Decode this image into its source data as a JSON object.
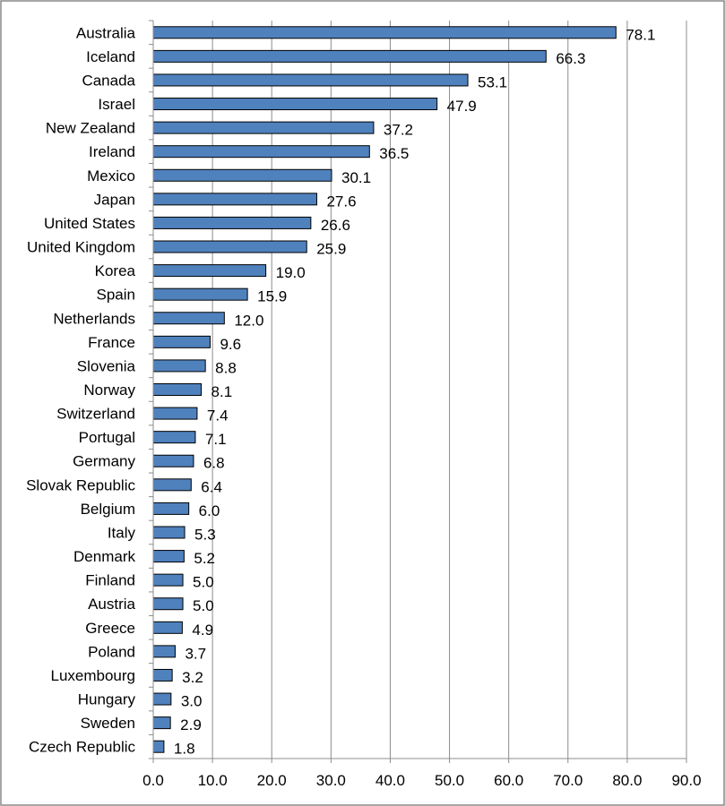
{
  "chart_data": {
    "type": "bar",
    "orientation": "horizontal",
    "title": "",
    "xlabel": "",
    "ylabel": "",
    "xlim": [
      0,
      90
    ],
    "x_ticks": [
      "0.0",
      "10.0",
      "20.0",
      "30.0",
      "40.0",
      "50.0",
      "60.0",
      "70.0",
      "80.0",
      "90.0"
    ],
    "grid": true,
    "legend": "none",
    "bar_color": "#4f81bd",
    "categories": [
      "Australia",
      "Iceland",
      "Canada",
      "Israel",
      "New Zealand",
      "Ireland",
      "Mexico",
      "Japan",
      "United States",
      "United Kingdom",
      "Korea",
      "Spain",
      "Netherlands",
      "France",
      "Slovenia",
      "Norway",
      "Switzerland",
      "Portugal",
      "Germany",
      "Slovak Republic",
      "Belgium",
      "Italy",
      "Denmark",
      "Finland",
      "Austria",
      "Greece",
      "Poland",
      "Luxembourg",
      "Hungary",
      "Sweden",
      "Czech Republic"
    ],
    "values": [
      78.1,
      66.3,
      53.1,
      47.9,
      37.2,
      36.5,
      30.1,
      27.6,
      26.6,
      25.9,
      19.0,
      15.9,
      12.0,
      9.6,
      8.8,
      8.1,
      7.4,
      7.1,
      6.8,
      6.4,
      6.0,
      5.3,
      5.2,
      5.0,
      5.0,
      4.9,
      3.7,
      3.2,
      3.0,
      2.9,
      1.8
    ],
    "value_labels": [
      "78.1",
      "66.3",
      "53.1",
      "47.9",
      "37.2",
      "36.5",
      "30.1",
      "27.6",
      "26.6",
      "25.9",
      "19.0",
      "15.9",
      "12.0",
      "9.6",
      "8.8",
      "8.1",
      "7.4",
      "7.1",
      "6.8",
      "6.4",
      "6.0",
      "5.3",
      "5.2",
      "5.0",
      "5.0",
      "4.9",
      "3.7",
      "3.2",
      "3.0",
      "2.9",
      "1.8"
    ]
  }
}
